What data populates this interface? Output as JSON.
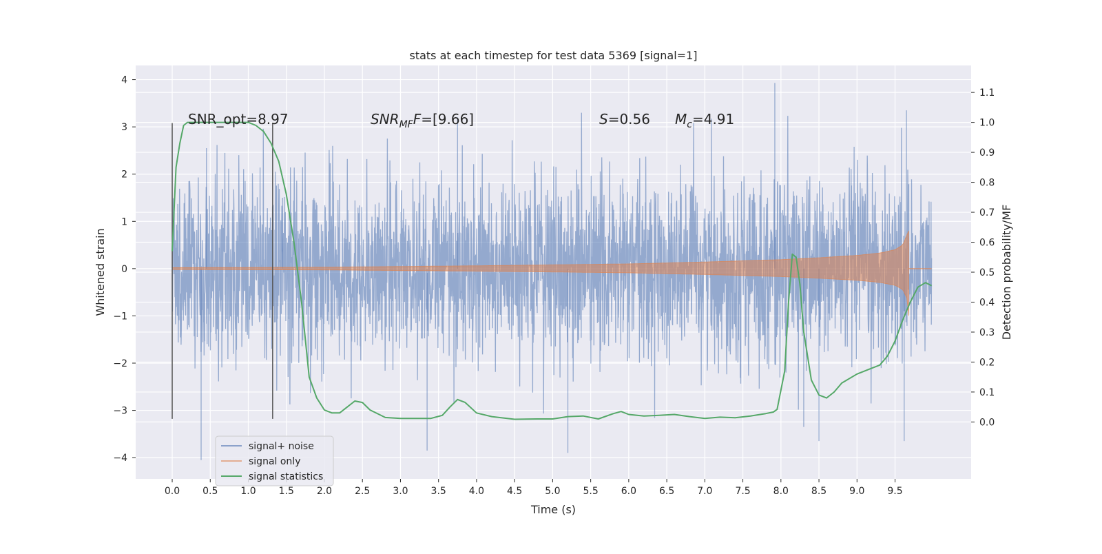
{
  "chart_data": {
    "type": "line",
    "title": "stats at each timestep for test data 5369 [signal=1]",
    "xlabel": "Time (s)",
    "ylabel_left": "Whitened strain",
    "ylabel_right": "Detection probability/MF",
    "xlim": [
      -0.48,
      10.5
    ],
    "ylim_left": [
      -4.45,
      4.3
    ],
    "ylim_right": [
      -0.19,
      1.19
    ],
    "grid": true,
    "background": "#eaeaf2",
    "x_ticks": [
      "0.0",
      "0.5",
      "1.0",
      "1.5",
      "2.0",
      "2.5",
      "3.0",
      "3.5",
      "4.0",
      "4.5",
      "5.0",
      "5.5",
      "6.0",
      "6.5",
      "7.0",
      "7.5",
      "8.0",
      "8.5",
      "9.0",
      "9.5"
    ],
    "y_ticks_left": [
      "4",
      "3",
      "2",
      "1",
      "0",
      "−1",
      "−2",
      "−3",
      "−4"
    ],
    "y_ticks_right": [
      "1.1",
      "1.0",
      "0.9",
      "0.8",
      "0.7",
      "0.6",
      "0.5",
      "0.4",
      "0.3",
      "0.2",
      "0.1",
      "0.0"
    ],
    "legend": {
      "position": "lower-left",
      "entries": [
        "signal+ noise",
        "signal only",
        "signal statistics"
      ]
    },
    "annotations": {
      "snr_opt": "SNR_opt=8.97",
      "snr_mf_prefix": "SNR",
      "snr_mf_sub": "MF",
      "snr_mf_suffix": "=[9.66]",
      "s_prefix": "S",
      "s_value": "=0.56",
      "mc_prefix": "M",
      "mc_sub": "c",
      "mc_value": "=4.91"
    },
    "vertical_lines_x": [
      0.0,
      1.32
    ],
    "series": [
      {
        "name": "signal+ noise",
        "color": "#4c72b0",
        "description": "whitened strain noise, roughly Gaussian, amplitude envelope ±2.5 with peaks to ±4",
        "x_range": [
          0.0,
          9.98
        ],
        "envelope_std": 0.95,
        "notable_peaks": [
          [
            0.38,
            -4.05
          ],
          [
            0.45,
            2.55
          ],
          [
            1.45,
            1.5
          ],
          [
            3.35,
            -3.85
          ],
          [
            3.75,
            3.2
          ],
          [
            5.2,
            -3.9
          ],
          [
            7.92,
            3.93
          ],
          [
            8.3,
            -3.35
          ],
          [
            8.5,
            -3.65
          ],
          [
            9.62,
            -3.65
          ],
          [
            9.65,
            3.35
          ]
        ]
      },
      {
        "name": "signal only",
        "color": "#dd8452",
        "description": "chirp signal with slowly growing amplitude, merger near 9.68 s",
        "amplitude": [
          [
            0.0,
            0.02
          ],
          [
            2.0,
            0.03
          ],
          [
            4.0,
            0.06
          ],
          [
            6.0,
            0.1
          ],
          [
            7.0,
            0.14
          ],
          [
            8.0,
            0.19
          ],
          [
            8.5,
            0.23
          ],
          [
            9.0,
            0.28
          ],
          [
            9.3,
            0.33
          ],
          [
            9.5,
            0.4
          ],
          [
            9.6,
            0.5
          ],
          [
            9.68,
            0.8
          ]
        ],
        "merger_time": 9.68
      },
      {
        "name": "signal statistics",
        "color": "#55a868",
        "axis": "right",
        "x": [
          0.0,
          0.05,
          0.1,
          0.15,
          0.2,
          0.3,
          0.5,
          0.7,
          0.9,
          1.0,
          1.1,
          1.2,
          1.3,
          1.4,
          1.5,
          1.6,
          1.7,
          1.8,
          1.9,
          2.0,
          2.1,
          2.2,
          2.3,
          2.4,
          2.5,
          2.6,
          2.8,
          3.0,
          3.2,
          3.4,
          3.55,
          3.65,
          3.75,
          3.85,
          4.0,
          4.2,
          4.5,
          4.8,
          5.0,
          5.2,
          5.4,
          5.6,
          5.8,
          5.9,
          6.0,
          6.2,
          6.4,
          6.6,
          6.8,
          7.0,
          7.2,
          7.4,
          7.6,
          7.8,
          7.9,
          7.95,
          8.05,
          8.1,
          8.15,
          8.2,
          8.25,
          8.3,
          8.4,
          8.5,
          8.6,
          8.7,
          8.8,
          9.0,
          9.2,
          9.3,
          9.4,
          9.5,
          9.6,
          9.7,
          9.8,
          9.9,
          9.98
        ],
        "y": [
          0.57,
          0.85,
          0.93,
          0.99,
          1.0,
          1.0,
          1.0,
          1.0,
          1.0,
          1.0,
          0.99,
          0.97,
          0.93,
          0.87,
          0.76,
          0.6,
          0.4,
          0.15,
          0.08,
          0.04,
          0.03,
          0.03,
          0.05,
          0.07,
          0.065,
          0.04,
          0.015,
          0.012,
          0.012,
          0.012,
          0.022,
          0.05,
          0.075,
          0.065,
          0.03,
          0.018,
          0.009,
          0.01,
          0.01,
          0.018,
          0.02,
          0.01,
          0.028,
          0.035,
          0.025,
          0.02,
          0.022,
          0.025,
          0.018,
          0.012,
          0.016,
          0.014,
          0.02,
          0.028,
          0.033,
          0.042,
          0.17,
          0.4,
          0.56,
          0.55,
          0.46,
          0.3,
          0.14,
          0.09,
          0.08,
          0.1,
          0.13,
          0.16,
          0.18,
          0.19,
          0.22,
          0.27,
          0.34,
          0.4,
          0.45,
          0.465,
          0.455
        ]
      }
    ]
  }
}
